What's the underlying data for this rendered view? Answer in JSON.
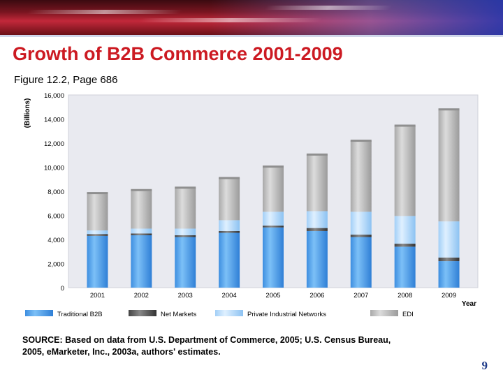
{
  "slide": {
    "title": "Growth of B2B Commerce 2001-2009",
    "subtitle": "Figure 12.2, Page 686",
    "source_line1": "SOURCE: Based on data from U.S. Department of Commerce, 2005; U.S. Census Bureau,",
    "source_line2": "2005, eMarketer, Inc., 2003a, authors' estimates.",
    "page_number": "9"
  },
  "chart_data": {
    "type": "bar",
    "stacked": true,
    "categories": [
      "2001",
      "2002",
      "2003",
      "2004",
      "2005",
      "2006",
      "2007",
      "2008",
      "2009"
    ],
    "series": [
      {
        "name": "Traditional B2B",
        "color": "#4fa3ea",
        "values": [
          4300,
          4350,
          4200,
          4550,
          5000,
          4700,
          4200,
          3400,
          2200
        ]
      },
      {
        "name": "Net Markets",
        "color": "#555555",
        "values": [
          150,
          150,
          150,
          150,
          150,
          250,
          200,
          250,
          300
        ]
      },
      {
        "name": "Private Industrial Networks",
        "color": "#a9d6fb",
        "values": [
          300,
          400,
          550,
          900,
          1150,
          1400,
          1900,
          2300,
          3000
        ]
      },
      {
        "name": "EDI",
        "color": "#b8b8b8",
        "values": [
          3100,
          3200,
          3400,
          3500,
          3750,
          4700,
          5900,
          7500,
          9300
        ]
      }
    ],
    "ylabel": "(Billions)",
    "xlabel": "Year",
    "ylim": [
      0,
      16000
    ],
    "yticks": [
      "0",
      "2,000",
      "4,000",
      "6,000",
      "8,000",
      "10,000",
      "12,000",
      "14,000",
      "16,000"
    ],
    "legend_position": "bottom",
    "grid": false
  }
}
